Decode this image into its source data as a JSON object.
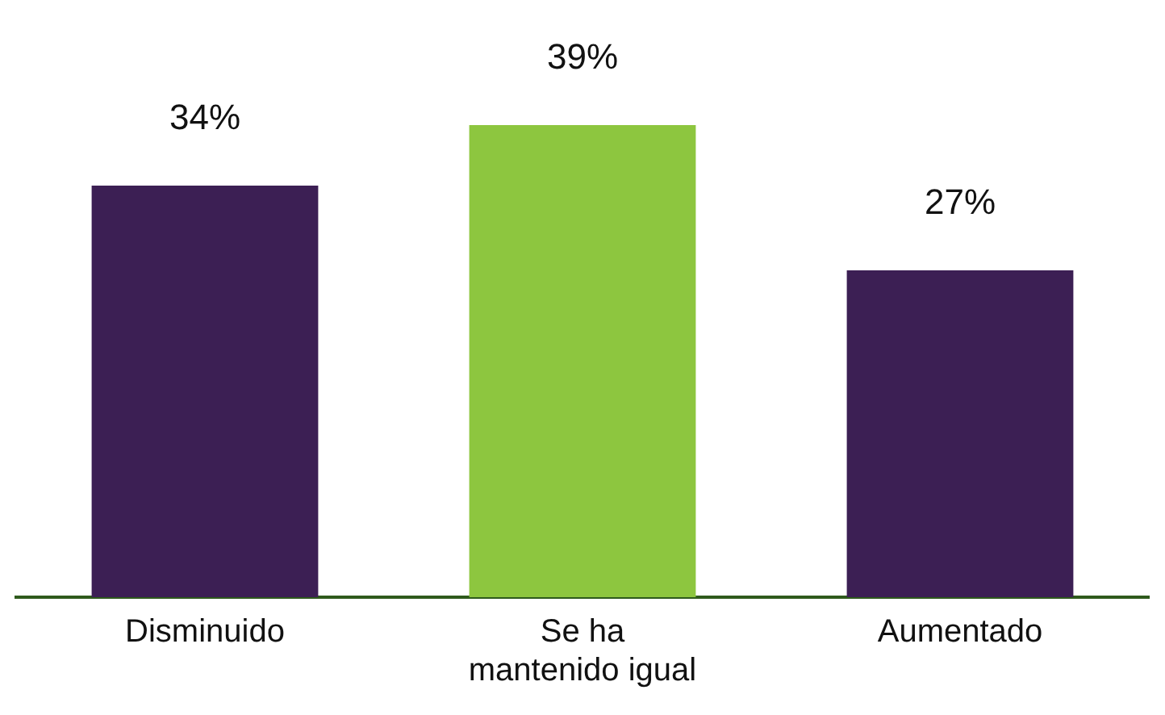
{
  "chart_data": {
    "type": "bar",
    "categories": [
      "Disminuido",
      "Se ha mantenido igual",
      "Aumentado"
    ],
    "values": [
      34,
      39,
      27
    ],
    "colors": [
      "#3c1f54",
      "#8dc63f",
      "#3c1f54"
    ],
    "value_labels": [
      "34%",
      "39%",
      "27%"
    ],
    "grid": false,
    "legend": false
  }
}
